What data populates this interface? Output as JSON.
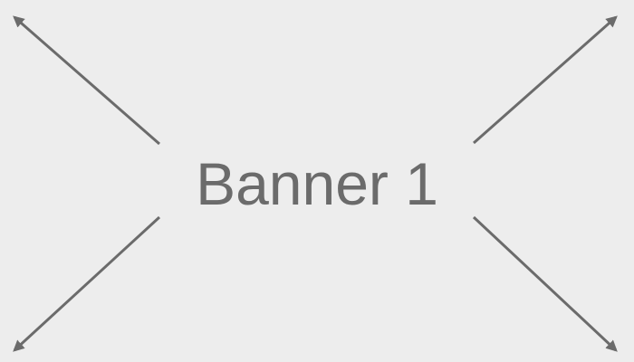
{
  "banner": {
    "label": "Banner 1",
    "background_color": "#ededed",
    "foreground_color": "#6b6b6b"
  },
  "icons": {
    "top_left": "arrow-top-left-icon",
    "top_right": "arrow-top-right-icon",
    "bottom_left": "arrow-bottom-left-icon",
    "bottom_right": "arrow-bottom-right-icon"
  }
}
